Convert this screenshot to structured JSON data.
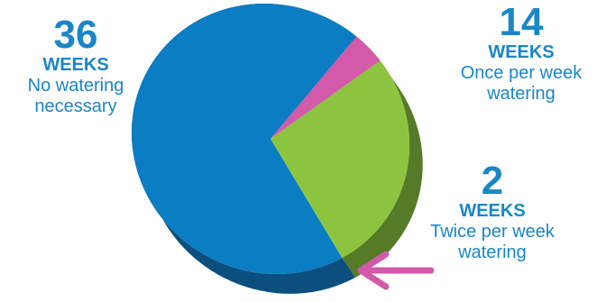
{
  "chart_data": {
    "type": "pie",
    "title": "",
    "categories": [
      "No watering necessary",
      "Once per week watering",
      "Twice per week watering"
    ],
    "values": [
      36,
      14,
      2
    ],
    "unit": "WEEKS",
    "colors": [
      "#0b7dc3",
      "#8dc43f",
      "#d25aa8"
    ],
    "side_colors": [
      "#0a4f7e",
      "#567b28",
      "#8e3a72"
    ],
    "labels": [
      {
        "value": "36",
        "unit": "WEEKS",
        "lines": [
          "No watering",
          "necessary"
        ]
      },
      {
        "value": "14",
        "unit": "WEEKS",
        "lines": [
          "Once per week",
          "watering"
        ]
      },
      {
        "value": "2",
        "unit": "WEEKS",
        "lines": [
          "Twice per week",
          "watering"
        ]
      }
    ],
    "arrow_color": "#d25aa8",
    "legend": "none",
    "grid": false
  }
}
